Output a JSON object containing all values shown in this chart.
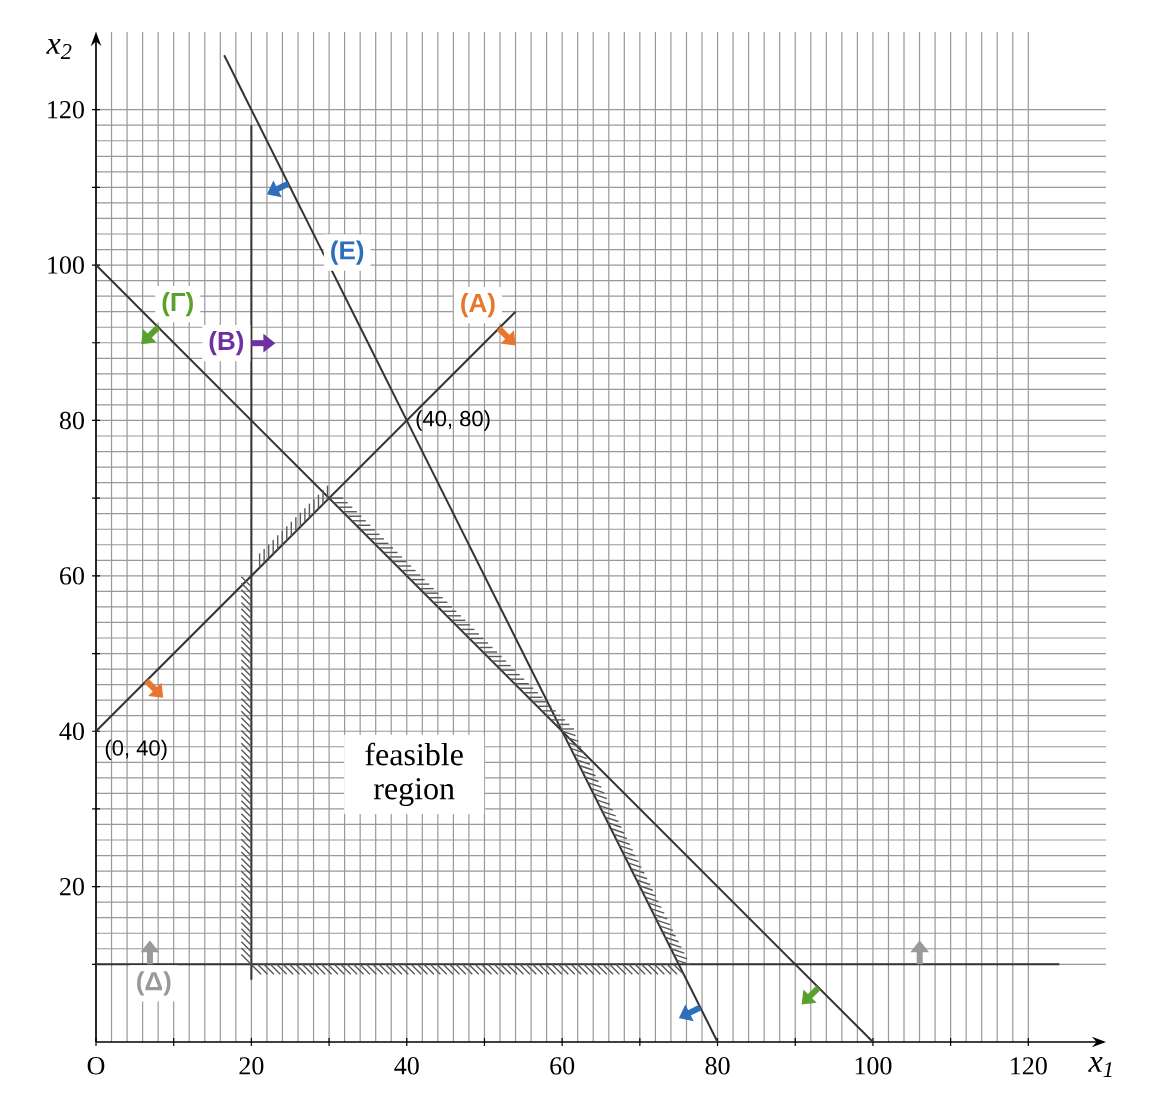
{
  "chart_data": {
    "type": "line",
    "xlabel": "x$_{1}$",
    "ylabel": "x$_{2}$",
    "xlim": [
      0,
      130
    ],
    "ylim": [
      0,
      130
    ],
    "xticks": [
      {
        "value": 0,
        "label": "O"
      },
      {
        "value": 10,
        "label": null
      },
      20,
      {
        "value": 30,
        "label": null
      },
      40,
      {
        "value": 50,
        "label": null
      },
      60,
      {
        "value": 70,
        "label": null
      },
      80,
      {
        "value": 90,
        "label": null
      },
      100,
      {
        "value": 110,
        "label": null
      },
      120
    ],
    "yticks": [
      {
        "value": 10,
        "label": null
      },
      20,
      {
        "value": 30,
        "label": null
      },
      40,
      {
        "value": 50,
        "label": null
      },
      60,
      {
        "value": 70,
        "label": null
      },
      80,
      {
        "value": 90,
        "label": null
      },
      100,
      {
        "value": 110,
        "label": null
      },
      120
    ],
    "grid": true,
    "marker": "none",
    "line_style": "solid",
    "series": [
      {
        "name": "(A)",
        "color": "#333333",
        "x": [
          0,
          54
        ],
        "values": [
          40,
          94
        ]
      },
      {
        "name": "(Γ)",
        "color": "#333333",
        "x": [
          0,
          100
        ],
        "values": [
          100,
          0
        ]
      },
      {
        "name": "(E)",
        "color": "#333333",
        "x": [
          16.5,
          80
        ],
        "values": [
          127,
          0
        ]
      },
      {
        "name": "(B)",
        "color": "#333333",
        "x": [
          20,
          20
        ],
        "values": [
          8,
          118
        ]
      },
      {
        "name": "(Δ)",
        "color": "#333333",
        "x": [
          0,
          124
        ],
        "values": [
          10,
          10
        ]
      }
    ],
    "annotations": [
      {
        "text": "(40, 80)",
        "x": 40,
        "y": 80
      },
      {
        "text": "(0, 40)",
        "x": 0,
        "y": 40
      },
      "feasible region"
    ]
  }
}
